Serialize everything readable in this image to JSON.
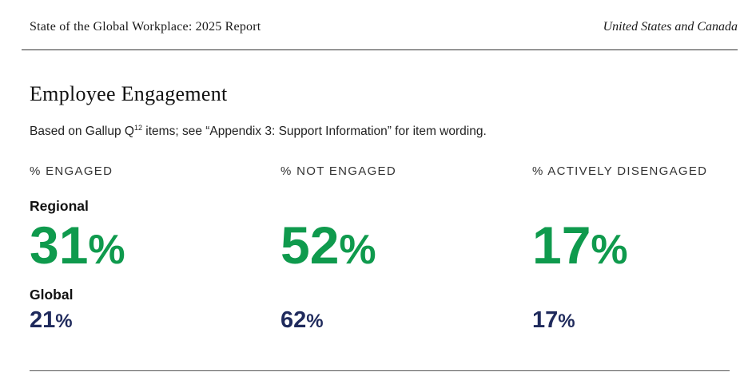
{
  "header": {
    "title": "State of the Global Workplace: 2025 Report",
    "region": "United States and Canada"
  },
  "section": {
    "title": "Employee Engagement",
    "subtitle_pre": "Based on Gallup Q",
    "subtitle_sup": "12",
    "subtitle_post": " items; see “Appendix 3: Support Information” for item wording."
  },
  "row_labels": {
    "regional": "Regional",
    "global": "Global"
  },
  "metrics": [
    {
      "heading": "% ENGAGED",
      "regional": "31",
      "global": "21"
    },
    {
      "heading": "% NOT ENGAGED",
      "regional": "52",
      "global": "62"
    },
    {
      "heading": "% ACTIVELY DISENGAGED",
      "regional": "17",
      "global": "17"
    }
  ],
  "percent_sign": "%",
  "colors": {
    "regional": "#0f9a4d",
    "global": "#1f2a5c"
  }
}
